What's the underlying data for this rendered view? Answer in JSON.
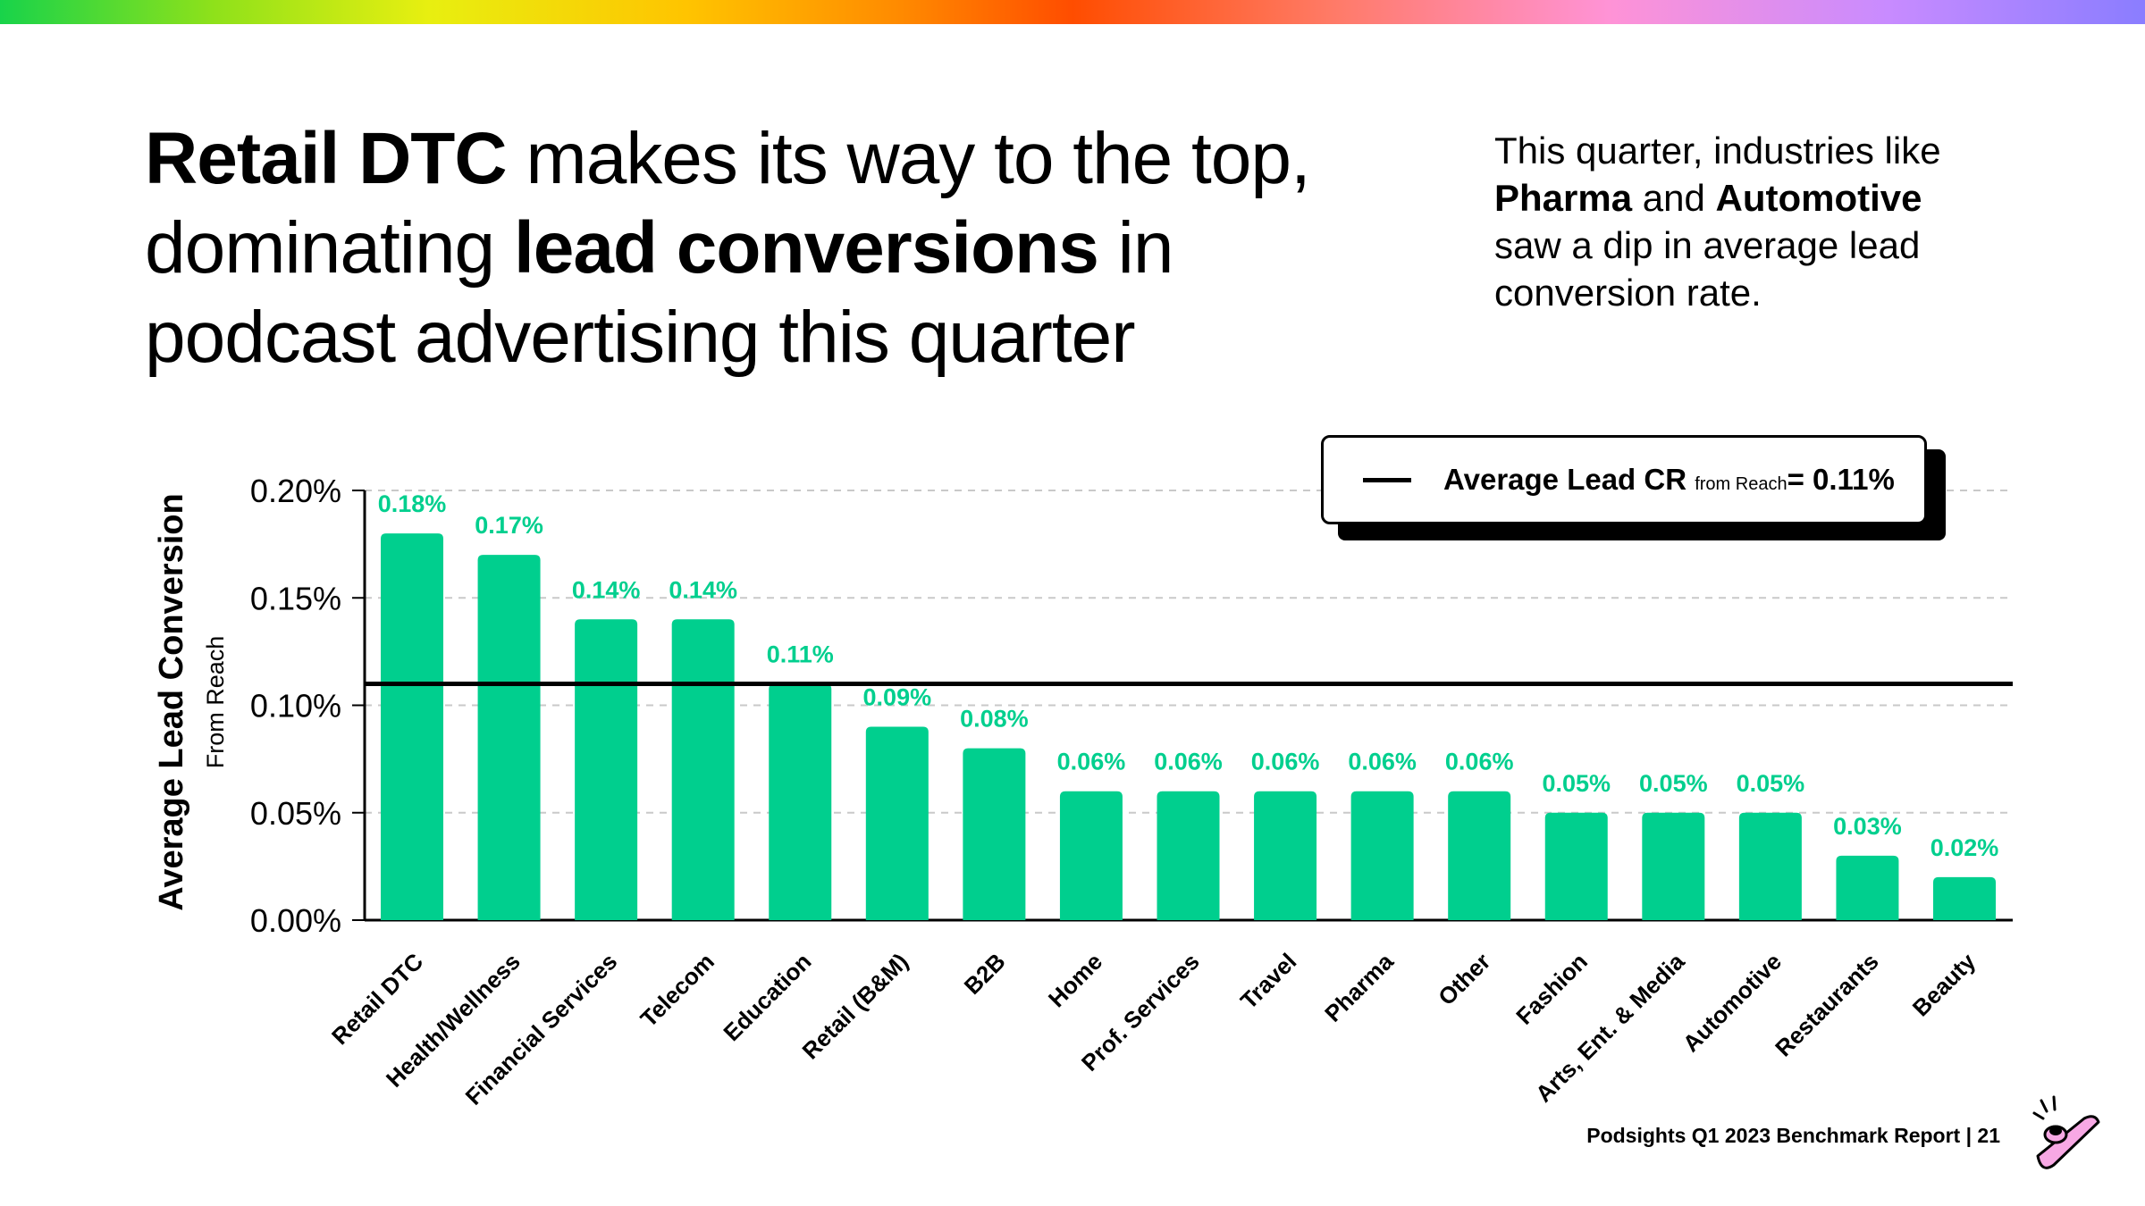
{
  "headline": {
    "bold_start": "Retail DTC",
    "mid_1": " makes its way to the top, dominating ",
    "bold_mid": "lead conversions",
    "end": " in podcast advertising this quarter"
  },
  "side_note": {
    "text_1": "This quarter, industries like ",
    "bold_1": "Pharma",
    "text_2": " and ",
    "bold_2": "Automotive",
    "text_3": " saw a dip in average lead conversion rate."
  },
  "legend": {
    "label_main": "Average Lead CR",
    "label_sub": "from Reach",
    "label_value": "= 0.11%"
  },
  "footer": {
    "text": "Podsights Q1 2023 Benchmark Report | 21"
  },
  "colors": {
    "bar": "#00cf8e",
    "bar_label": "#00cf8e",
    "average_line": "#000000",
    "gridline": "#c9c9c9"
  },
  "chart_data": {
    "type": "bar",
    "title": "",
    "ylabel": "Average Lead Conversion",
    "ylabel_sub": "From Reach",
    "xlabel": "",
    "ylim": [
      0,
      0.2
    ],
    "yticks": [
      "0.00%",
      "0.05%",
      "0.10%",
      "0.15%",
      "0.20%"
    ],
    "ytick_values": [
      0,
      0.05,
      0.1,
      0.15,
      0.2
    ],
    "grid": true,
    "categories": [
      "Retail DTC",
      "Health/Wellness",
      "Financial Services",
      "Telecom",
      "Education",
      "Retail (B&M)",
      "B2B",
      "Home",
      "Prof. Services",
      "Travel",
      "Pharma",
      "Other",
      "Fashion",
      "Arts, Ent. & Media",
      "Automotive",
      "Restaurants",
      "Beauty"
    ],
    "values": [
      0.18,
      0.17,
      0.14,
      0.14,
      0.11,
      0.09,
      0.08,
      0.06,
      0.06,
      0.06,
      0.06,
      0.06,
      0.05,
      0.05,
      0.05,
      0.03,
      0.02
    ],
    "data_labels": [
      "0.18%",
      "0.17%",
      "0.14%",
      "0.14%",
      "0.11%",
      "0.09%",
      "0.08%",
      "0.06%",
      "0.06%",
      "0.06%",
      "0.06%",
      "0.06%",
      "0.05%",
      "0.05%",
      "0.05%",
      "0.03%",
      "0.02%"
    ],
    "reference_line": {
      "value": 0.11,
      "label": "Average Lead CR from Reach= 0.11%"
    },
    "legend_position": "top-right"
  }
}
